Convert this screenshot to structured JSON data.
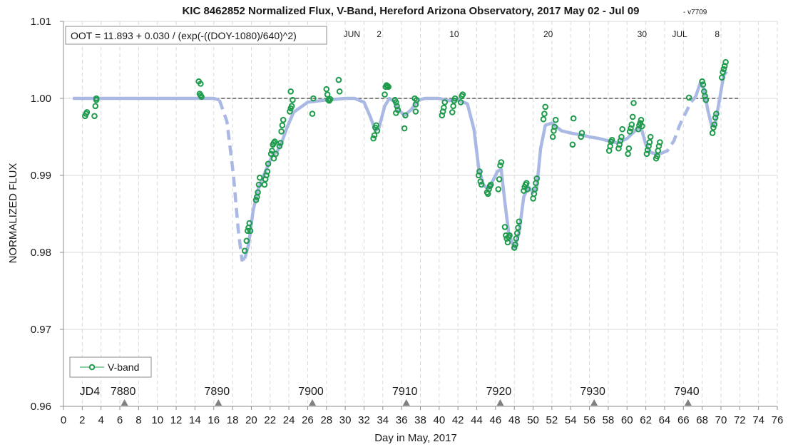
{
  "colors": {
    "marker": "#1e9b4b",
    "model": "#aab8e4",
    "grid": "#d9d9d9",
    "reference": "#595959",
    "axis": "#8c8c8c",
    "text": "#1a1a1a"
  },
  "chart_data": {
    "type": "scatter",
    "title": "KIC 8462852 Normalized Flux, V-Band, Hereford Arizona Observatory, 2017 May 02 - Jul 09",
    "version_tag": "- v7709",
    "xlabel": "Day in May, 2017",
    "ylabel": "NORMALIZED FLUX",
    "xlim": [
      0,
      76
    ],
    "ylim": [
      0.96,
      1.01
    ],
    "x_ticks": [
      0,
      2,
      4,
      6,
      8,
      10,
      12,
      14,
      16,
      18,
      20,
      22,
      24,
      26,
      28,
      30,
      32,
      34,
      36,
      38,
      40,
      42,
      44,
      46,
      48,
      50,
      52,
      54,
      56,
      58,
      60,
      62,
      64,
      66,
      68,
      70,
      72,
      74,
      76
    ],
    "y_ticks": [
      {
        "value": 0.96,
        "label": "0.96"
      },
      {
        "value": 0.97,
        "label": "0.97"
      },
      {
        "value": 0.98,
        "label": "0.98"
      },
      {
        "value": 0.99,
        "label": "0.99"
      },
      {
        "value": 1.0,
        "label": "1.00"
      },
      {
        "value": 1.01,
        "label": "1.01"
      }
    ],
    "grid": {
      "vertical": "dashed",
      "horizontal": "solid"
    },
    "formula": "OOT = 11.893 + 0.030 / (exp(-((DOY-1080)/640)^2)",
    "legend": {
      "position": "bottom-left",
      "label": "V-band"
    },
    "reference_line": {
      "y": 1.0,
      "x_start": 1.0,
      "x_end": 72.0,
      "style": "dashed"
    },
    "month_labels": [
      {
        "x": 30.7,
        "label": "JUN"
      },
      {
        "x": 33.6,
        "label": "2"
      },
      {
        "x": 41.6,
        "label": "10"
      },
      {
        "x": 51.6,
        "label": "20"
      },
      {
        "x": 61.6,
        "label": "30"
      },
      {
        "x": 65.6,
        "label": "JUL"
      },
      {
        "x": 69.6,
        "label": "8"
      }
    ],
    "jd_markers": {
      "prefix": "JD4",
      "prefix_x": 2.8,
      "items": [
        {
          "x": 6.5,
          "label": "7880"
        },
        {
          "x": 16.5,
          "label": "7890"
        },
        {
          "x": 26.5,
          "label": "7900"
        },
        {
          "x": 36.5,
          "label": "7910"
        },
        {
          "x": 46.5,
          "label": "7920"
        },
        {
          "x": 56.5,
          "label": "7930"
        },
        {
          "x": 66.5,
          "label": "7940"
        }
      ]
    },
    "model_segments": [
      {
        "style": "solid",
        "points": [
          [
            1,
            1.0
          ],
          [
            5,
            1.0
          ],
          [
            10,
            1.0
          ],
          [
            14,
            1.0
          ],
          [
            16,
            1.0
          ],
          [
            16.6,
            0.9998
          ]
        ]
      },
      {
        "style": "dashed",
        "points": [
          [
            16.6,
            0.9998
          ],
          [
            17.4,
            0.997
          ],
          [
            18.1,
            0.99
          ],
          [
            18.6,
            0.983
          ],
          [
            19.0,
            0.979
          ],
          [
            19.3,
            0.9792
          ]
        ]
      },
      {
        "style": "solid",
        "points": [
          [
            19.3,
            0.9792
          ],
          [
            19.7,
            0.981
          ],
          [
            20.2,
            0.9855
          ],
          [
            20.8,
            0.9885
          ],
          [
            21.5,
            0.9905
          ],
          [
            22.2,
            0.9925
          ],
          [
            22.8,
            0.9932
          ],
          [
            23.3,
            0.9945
          ],
          [
            23.8,
            0.9962
          ],
          [
            24.5,
            0.9982
          ],
          [
            26,
            0.9995
          ],
          [
            28,
            0.9998
          ],
          [
            30,
            1.0
          ],
          [
            31,
            1.0
          ],
          [
            32,
            0.9995
          ],
          [
            32.7,
            0.9975
          ],
          [
            33.2,
            0.9958
          ],
          [
            33.6,
            0.9962
          ],
          [
            34.2,
            0.999
          ],
          [
            34.7,
            1.0
          ],
          [
            35.2,
            0.9996
          ],
          [
            35.7,
            0.9985
          ],
          [
            36.3,
            0.9978
          ],
          [
            37,
            0.9985
          ],
          [
            37.8,
            0.9998
          ],
          [
            38.5,
            1.0
          ],
          [
            40,
            1.0
          ],
          [
            41,
            0.9997
          ],
          [
            42,
            0.9998
          ],
          [
            43,
            0.9993
          ],
          [
            43.7,
            0.996
          ],
          [
            44.2,
            0.991
          ],
          [
            44.7,
            0.9888
          ],
          [
            45.2,
            0.9882
          ],
          [
            45.8,
            0.9895
          ],
          [
            46.2,
            0.9905
          ],
          [
            46.6,
            0.9908
          ],
          [
            47,
            0.9865
          ],
          [
            47.4,
            0.9825
          ],
          [
            48,
            0.9805
          ],
          [
            48.5,
            0.9825
          ],
          [
            49,
            0.9872
          ],
          [
            49.5,
            0.9885
          ],
          [
            50,
            0.9878
          ],
          [
            50.4,
            0.9885
          ],
          [
            50.8,
            0.9935
          ],
          [
            51.3,
            0.9965
          ],
          [
            52,
            0.9968
          ],
          [
            53,
            0.9958
          ],
          [
            54,
            0.9955
          ],
          [
            55,
            0.9953
          ],
          [
            56,
            0.995
          ],
          [
            57,
            0.9948
          ],
          [
            58,
            0.9945
          ],
          [
            59,
            0.9942
          ],
          [
            60,
            0.9948
          ],
          [
            60.7,
            0.9956
          ],
          [
            61.2,
            0.9962
          ],
          [
            61.6,
            0.9958
          ],
          [
            62,
            0.994
          ],
          [
            62.5,
            0.993
          ],
          [
            63,
            0.9928
          ],
          [
            63.5,
            0.9928
          ]
        ]
      },
      {
        "style": "dashed",
        "points": [
          [
            63.5,
            0.9928
          ],
          [
            64.3,
            0.9932
          ],
          [
            65,
            0.9945
          ],
          [
            65.6,
            0.9965
          ],
          [
            66.2,
            0.998
          ],
          [
            66.8,
            0.9995
          ],
          [
            67.3,
            1.0002
          ]
        ]
      },
      {
        "style": "solid",
        "points": [
          [
            67.3,
            1.0002
          ],
          [
            67.8,
            1.002
          ],
          [
            68.2,
            1.0012
          ],
          [
            68.6,
            0.9985
          ],
          [
            69,
            0.9965
          ],
          [
            69.4,
            0.9968
          ],
          [
            69.8,
            0.9995
          ],
          [
            70.3,
            1.003
          ],
          [
            70.6,
            1.0035
          ]
        ]
      }
    ],
    "series": [
      {
        "name": "V-band",
        "points": [
          [
            2.3,
            0.9977
          ],
          [
            2.4,
            0.998
          ],
          [
            2.5,
            0.9982
          ],
          [
            3.3,
            0.9977
          ],
          [
            3.4,
            0.999
          ],
          [
            3.5,
            0.9998
          ],
          [
            3.5,
            1.0
          ],
          [
            14.4,
            1.0022
          ],
          [
            14.6,
            1.0019
          ],
          [
            14.5,
            1.0006
          ],
          [
            14.6,
            1.0004
          ],
          [
            14.7,
            1.0002
          ],
          [
            19.3,
            0.9802
          ],
          [
            19.5,
            0.9815
          ],
          [
            19.6,
            0.9828
          ],
          [
            19.7,
            0.9832
          ],
          [
            19.8,
            0.9838
          ],
          [
            19.9,
            0.9828
          ],
          [
            20.5,
            0.9868
          ],
          [
            20.6,
            0.9872
          ],
          [
            20.7,
            0.9878
          ],
          [
            20.8,
            0.9888
          ],
          [
            20.9,
            0.9897
          ],
          [
            21.4,
            0.9888
          ],
          [
            21.5,
            0.9895
          ],
          [
            21.6,
            0.99
          ],
          [
            21.7,
            0.9905
          ],
          [
            21.8,
            0.9915
          ],
          [
            22.1,
            0.9928
          ],
          [
            22.2,
            0.9932
          ],
          [
            22.3,
            0.994
          ],
          [
            22.4,
            0.9942
          ],
          [
            22.5,
            0.9944
          ],
          [
            22.4,
            0.9922
          ],
          [
            22.6,
            0.9928
          ],
          [
            23.0,
            0.9938
          ],
          [
            23.1,
            0.9942
          ],
          [
            23.2,
            0.9957
          ],
          [
            23.3,
            0.9965
          ],
          [
            23.4,
            0.9972
          ],
          [
            24.1,
            0.9983
          ],
          [
            24.2,
            0.9987
          ],
          [
            24.3,
            0.999
          ],
          [
            24.2,
            1.0009
          ],
          [
            24.4,
            0.9998
          ],
          [
            26.5,
            0.998
          ],
          [
            26.6,
            1.0
          ],
          [
            28.0,
            1.0012
          ],
          [
            28.1,
            1.0005
          ],
          [
            28.2,
            0.9998
          ],
          [
            28.3,
            0.9997
          ],
          [
            28.4,
            0.9999
          ],
          [
            29.3,
            1.0024
          ],
          [
            29.4,
            1.0009
          ],
          [
            33.0,
            0.9948
          ],
          [
            33.1,
            0.9952
          ],
          [
            33.2,
            0.9962
          ],
          [
            33.3,
            0.9965
          ],
          [
            33.4,
            0.9958
          ],
          [
            34.2,
            1.0005
          ],
          [
            34.3,
            1.0015
          ],
          [
            34.4,
            1.0017
          ],
          [
            34.5,
            1.0016
          ],
          [
            34.6,
            1.0015
          ],
          [
            35.3,
            0.9998
          ],
          [
            35.4,
            0.9995
          ],
          [
            35.5,
            0.999
          ],
          [
            35.6,
            0.9985
          ],
          [
            35.4,
            0.9981
          ],
          [
            36.3,
            0.9961
          ],
          [
            36.4,
            0.9978
          ],
          [
            37.4,
            1.0
          ],
          [
            37.5,
            0.9992
          ],
          [
            37.6,
            0.9998
          ],
          [
            37.5,
            0.9983
          ],
          [
            40.3,
            0.9978
          ],
          [
            40.4,
            0.9983
          ],
          [
            40.5,
            0.9988
          ],
          [
            40.6,
            0.9995
          ],
          [
            41.4,
            0.9982
          ],
          [
            41.5,
            0.999
          ],
          [
            41.6,
            0.9997
          ],
          [
            41.7,
            1.0
          ],
          [
            42.3,
            0.9995
          ],
          [
            42.4,
            1.0003
          ],
          [
            42.5,
            1.0005
          ],
          [
            44.2,
            0.99
          ],
          [
            44.3,
            0.9905
          ],
          [
            44.4,
            0.9892
          ],
          [
            44.5,
            0.9888
          ],
          [
            45.1,
            0.9878
          ],
          [
            45.2,
            0.9876
          ],
          [
            45.3,
            0.9882
          ],
          [
            45.4,
            0.9886
          ],
          [
            45.5,
            0.9888
          ],
          [
            46.3,
            0.9882
          ],
          [
            46.4,
            0.9895
          ],
          [
            46.5,
            0.9913
          ],
          [
            46.6,
            0.9917
          ],
          [
            47.0,
            0.9833
          ],
          [
            47.1,
            0.9822
          ],
          [
            47.2,
            0.9818
          ],
          [
            47.3,
            0.9813
          ],
          [
            47.4,
            0.982
          ],
          [
            47.5,
            0.9822
          ],
          [
            48.0,
            0.9806
          ],
          [
            48.1,
            0.981
          ],
          [
            48.2,
            0.9818
          ],
          [
            48.3,
            0.9825
          ],
          [
            48.4,
            0.9832
          ],
          [
            48.5,
            0.984
          ],
          [
            49.0,
            0.988
          ],
          [
            49.1,
            0.9885
          ],
          [
            49.2,
            0.9888
          ],
          [
            49.3,
            0.989
          ],
          [
            49.4,
            0.9882
          ],
          [
            50.0,
            0.987
          ],
          [
            50.1,
            0.9876
          ],
          [
            50.2,
            0.9882
          ],
          [
            50.3,
            0.989
          ],
          [
            50.4,
            0.9896
          ],
          [
            51.1,
            0.9973
          ],
          [
            51.2,
            0.998
          ],
          [
            51.3,
            0.9989
          ],
          [
            52.1,
            0.995
          ],
          [
            52.2,
            0.9958
          ],
          [
            52.3,
            0.9963
          ],
          [
            52.4,
            0.9972
          ],
          [
            54.2,
            0.994
          ],
          [
            54.3,
            0.9974
          ],
          [
            55.1,
            0.995
          ],
          [
            55.2,
            0.9955
          ],
          [
            58.1,
            0.9932
          ],
          [
            58.2,
            0.9938
          ],
          [
            58.3,
            0.9944
          ],
          [
            58.4,
            0.9946
          ],
          [
            59.1,
            0.9935
          ],
          [
            59.2,
            0.994
          ],
          [
            59.3,
            0.9945
          ],
          [
            59.4,
            0.995
          ],
          [
            59.5,
            0.996
          ],
          [
            60.1,
            0.9928
          ],
          [
            60.2,
            0.9935
          ],
          [
            60.3,
            0.9957
          ],
          [
            60.4,
            0.9961
          ],
          [
            60.5,
            0.9966
          ],
          [
            60.6,
            0.9976
          ],
          [
            60.7,
            0.9994
          ],
          [
            61.2,
            0.996
          ],
          [
            61.3,
            0.9965
          ],
          [
            61.4,
            0.9968
          ],
          [
            61.5,
            0.9972
          ],
          [
            61.6,
            0.9964
          ],
          [
            62.1,
            0.9928
          ],
          [
            62.2,
            0.9933
          ],
          [
            62.3,
            0.9938
          ],
          [
            62.4,
            0.9943
          ],
          [
            62.5,
            0.995
          ],
          [
            63.1,
            0.9922
          ],
          [
            63.2,
            0.9925
          ],
          [
            63.3,
            0.9932
          ],
          [
            63.4,
            0.9938
          ],
          [
            63.5,
            0.9943
          ],
          [
            66.6,
            1.0001
          ],
          [
            68.0,
            1.0022
          ],
          [
            68.1,
            1.0018
          ],
          [
            68.2,
            1.0009
          ],
          [
            68.3,
            1.0003
          ],
          [
            68.4,
            0.9998
          ],
          [
            69.1,
            0.9955
          ],
          [
            69.2,
            0.9962
          ],
          [
            69.3,
            0.9966
          ],
          [
            69.4,
            0.9975
          ],
          [
            69.5,
            0.998
          ],
          [
            70.1,
            1.0027
          ],
          [
            70.2,
            1.0034
          ],
          [
            70.3,
            1.0038
          ],
          [
            70.4,
            1.0042
          ],
          [
            70.5,
            1.0047
          ]
        ]
      }
    ]
  }
}
